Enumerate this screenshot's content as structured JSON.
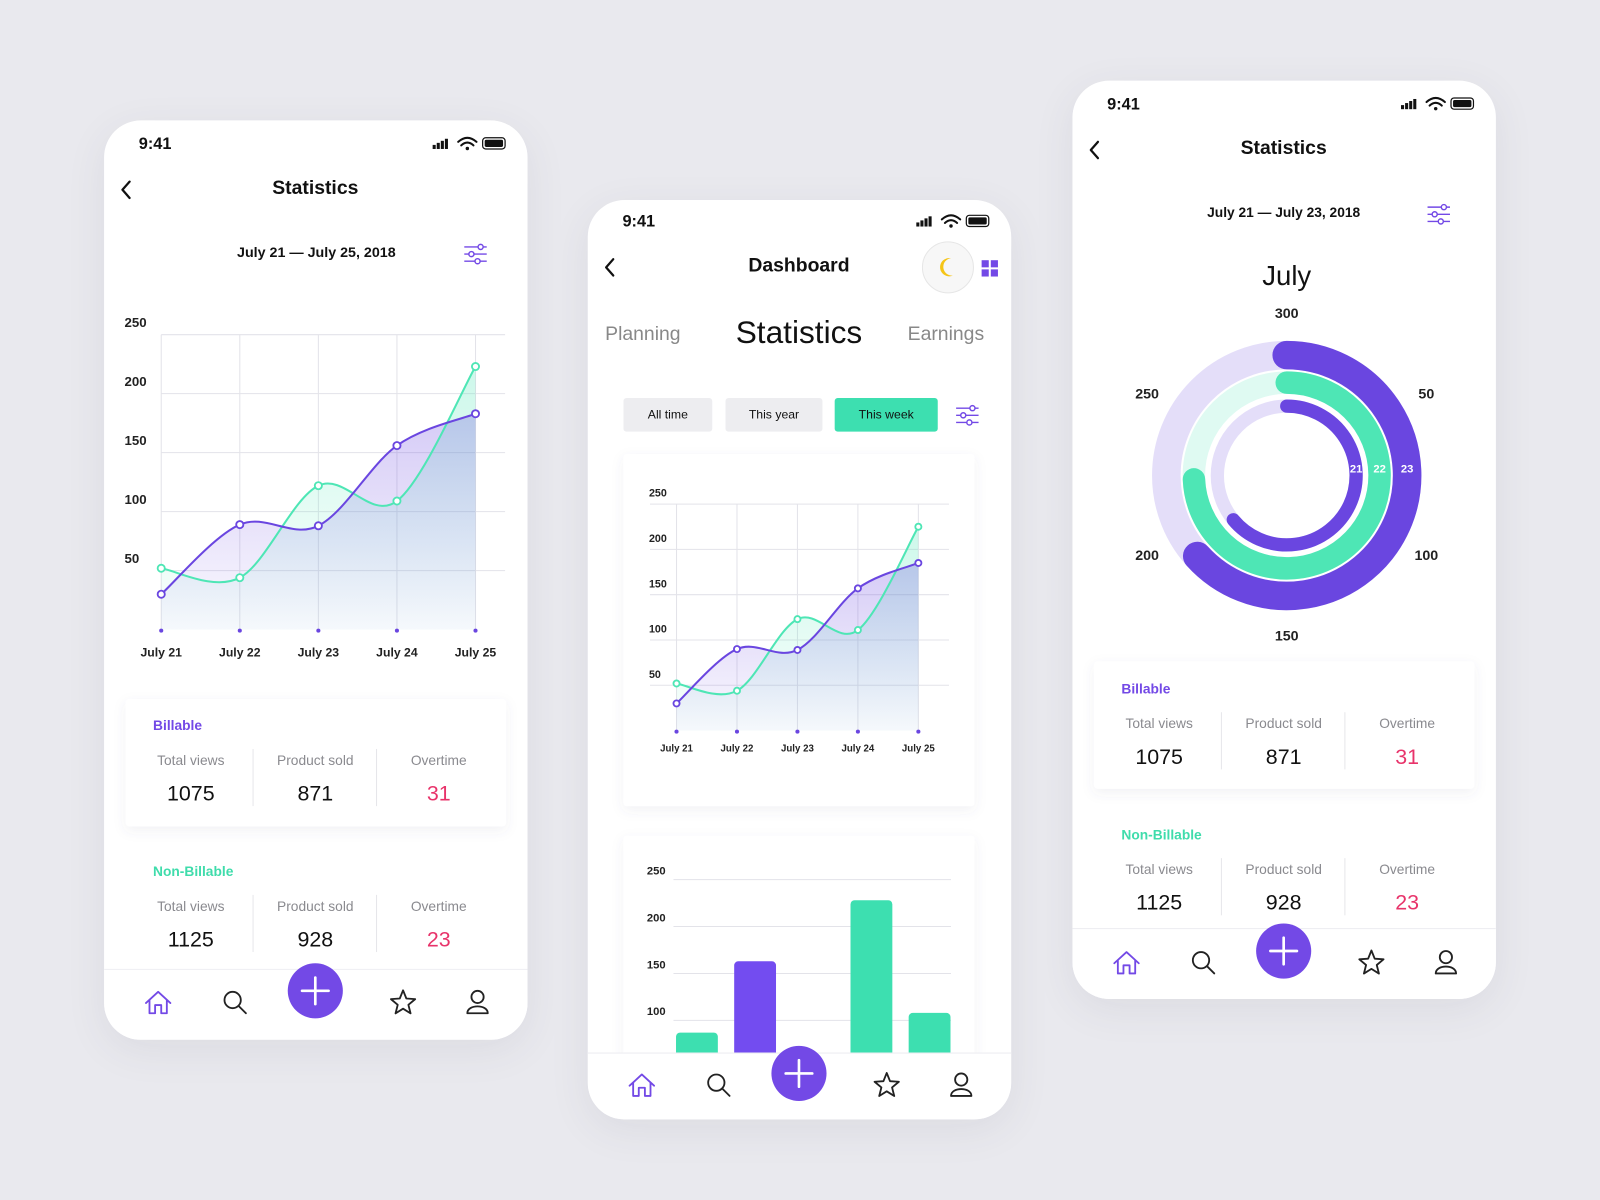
{
  "phones": [
    {
      "status_time": "9:41",
      "title": "Statistics",
      "date_range": "July 21 — July 25, 2018",
      "chart": {
        "type": "line",
        "categories": [
          "July 21",
          "July 22",
          "July 23",
          "July 24",
          "July 25"
        ],
        "series": [
          {
            "color": "#4ee6b5",
            "values": [
              52,
              44,
              122,
              109,
              223
            ]
          },
          {
            "color": "#6a46e0",
            "values": [
              30,
              89,
              88,
              156,
              183
            ]
          }
        ],
        "ylim": [
          0,
          250
        ],
        "yticks": [
          50,
          100,
          150,
          200,
          250
        ],
        "grid": true
      },
      "stats": [
        {
          "heading": "Billable",
          "color": "#7349e6",
          "items": [
            {
              "label": "Total views",
              "value": 1075
            },
            {
              "label": "Product sold",
              "value": 871
            },
            {
              "label": "Overtime",
              "value": 31,
              "color": "#e8336a"
            }
          ]
        },
        {
          "heading": "Non-Billable",
          "color": "#3fdcab",
          "items": [
            {
              "label": "Total views",
              "value": 1125
            },
            {
              "label": "Product sold",
              "value": 928
            },
            {
              "label": "Overtime",
              "value": 23,
              "color": "#e8336a"
            }
          ]
        }
      ]
    },
    {
      "status_time": "9:41",
      "title": "Dashboard",
      "tabs": [
        "Planning",
        "Statistics",
        "Earnings"
      ],
      "filters": [
        "All time",
        "This year",
        "This week"
      ],
      "active_filter": 2,
      "charts": [
        {
          "type": "line",
          "categories": [
            "July 21",
            "July 22",
            "July 23",
            "July 24",
            "July 25"
          ],
          "series": [
            {
              "color": "#4ee6b5",
              "values": [
                52,
                44,
                123,
                111,
                225
              ]
            },
            {
              "color": "#6a46e0",
              "values": [
                30,
                90,
                89,
                157,
                185
              ]
            }
          ],
          "ylim": [
            0,
            250
          ],
          "yticks": [
            50,
            100,
            150,
            200,
            250
          ],
          "grid": true
        },
        {
          "type": "bar",
          "categories": [
            null,
            null,
            null,
            null,
            null
          ],
          "series": [
            {
              "color": "#3ddfb0",
              "values": [
                87,
                null,
                null,
                228,
                108
              ]
            },
            {
              "color": "#734cf0",
              "values": [
                null,
                163,
                null,
                null,
                null
              ]
            }
          ],
          "ylim": [
            0,
            250
          ],
          "yticks": [
            100,
            150,
            200,
            250
          ],
          "grid": true
        }
      ]
    },
    {
      "status_time": "9:41",
      "title": "Statistics",
      "date_range": "July 21 — July 23, 2018",
      "chart": {
        "type": "radial",
        "title": "July",
        "categories": [
          "21",
          "22",
          "23"
        ],
        "values": [
          192,
          223,
          190
        ],
        "colors": [
          "#6a46e0",
          "#4ee6b5",
          "#6a46e0"
        ],
        "rlim": [
          0,
          300
        ],
        "rticks": [
          50,
          100,
          150,
          200,
          250,
          300
        ]
      },
      "stats": [
        {
          "heading": "Billable",
          "color": "#7349e6",
          "items": [
            {
              "label": "Total views",
              "value": 1075
            },
            {
              "label": "Product sold",
              "value": 871
            },
            {
              "label": "Overtime",
              "value": 31,
              "color": "#e8336a"
            }
          ]
        },
        {
          "heading": "Non-Billable",
          "color": "#3fdcab",
          "items": [
            {
              "label": "Total views",
              "value": 1125
            },
            {
              "label": "Product sold",
              "value": 928
            },
            {
              "label": "Overtime",
              "value": 23,
              "color": "#e8336a"
            }
          ]
        }
      ]
    }
  ]
}
